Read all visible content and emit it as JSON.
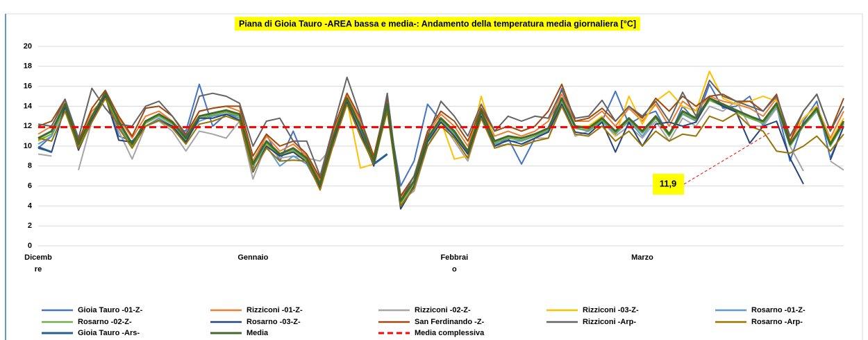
{
  "chart_data": {
    "type": "line",
    "title": "Piana di Gioia Tauro -AREA bassa e media-: Andamento della temperatura media giornaliera [°C]",
    "categories": [
      "Dicembre",
      null,
      null,
      null,
      null,
      null,
      null,
      null,
      null,
      null,
      null,
      null,
      null,
      null,
      null,
      null,
      "Gennaio",
      null,
      null,
      null,
      null,
      null,
      null,
      null,
      null,
      null,
      null,
      null,
      null,
      null,
      null,
      "Febbraio",
      null,
      null,
      null,
      null,
      null,
      null,
      null,
      null,
      null,
      null,
      null,
      null,
      null,
      "Marzo",
      null,
      null,
      null,
      null,
      null,
      null,
      null,
      null,
      null,
      null,
      null,
      null,
      null,
      null,
      null
    ],
    "ylim": [
      0,
      20
    ],
    "yticks": [
      0,
      2,
      4,
      6,
      8,
      10,
      12,
      14,
      16,
      18,
      20
    ],
    "grid": true,
    "legend": "bottom",
    "series": [
      {
        "name": "Gioia Tauro -01-Z-",
        "color": "#4472c4",
        "values": [
          9.8,
          11,
          14,
          9.8,
          12.8,
          15.5,
          11,
          10.5,
          12,
          12.8,
          11.8,
          11.5,
          16.2,
          12,
          13.2,
          13,
          7.8,
          11.2,
          8.5,
          11.5,
          8.2,
          5.8,
          11.5,
          14.5,
          12.2,
          8.2,
          14,
          6,
          8.5,
          14.2,
          12.5,
          11,
          9.5,
          13,
          10,
          10.8,
          8.2,
          10.8,
          11.5,
          15.8,
          11.8,
          12,
          12.5,
          15.5,
          12.2,
          13,
          13.5,
          11,
          14,
          12.5,
          16.2,
          13.8,
          14,
          15,
          12,
          14,
          8.5,
          12.5,
          14.5,
          8.8,
          12
        ]
      },
      {
        "name": "Rizziconi -01-Z-",
        "color": "#ed7d31",
        "values": [
          11.2,
          12,
          14.5,
          10.5,
          13.5,
          14.8,
          12.8,
          10.8,
          13,
          13.5,
          12.5,
          11,
          13.5,
          13.8,
          14,
          13.5,
          8.5,
          11,
          9.5,
          10.2,
          9,
          6.5,
          11.5,
          15,
          12.5,
          8.8,
          14.5,
          4.8,
          7,
          11.2,
          13.2,
          12,
          10,
          13.8,
          11,
          11.5,
          11,
          11.5,
          12.5,
          15.2,
          12.5,
          12.5,
          13.5,
          12,
          13.8,
          12.5,
          14.2,
          12,
          14.5,
          13.5,
          15,
          14.5,
          14.2,
          13.8,
          13,
          14.8,
          10.5,
          12.8,
          14,
          10.8,
          13.5
        ]
      },
      {
        "name": "Rizziconi -02-Z-",
        "color": "#a5a5a5",
        "values": [
          9.2,
          9,
          null,
          7.6,
          12.5,
          15,
          11.5,
          8.7,
          12,
          12.5,
          11.5,
          9.5,
          11.5,
          11.2,
          10.8,
          12.5,
          6.7,
          10.2,
          8.8,
          9,
          8.8,
          8.5,
          10,
          14.5,
          11,
          8.5,
          13.5,
          4.5,
          5.5,
          10,
          12.5,
          10.5,
          8.5,
          13,
          10,
          10.2,
          10,
          10.8,
          10.8,
          14.5,
          11,
          11.5,
          12.5,
          11,
          12,
          10.8,
          12.5,
          10.5,
          12.8,
          12,
          14,
          13.5,
          14.5,
          12,
          12,
          13.8,
          10,
          7.5,
          null,
          8.5,
          7.6
        ]
      },
      {
        "name": "Rizziconi -03-Z-",
        "color": "#ffc000",
        "values": [
          10.5,
          11.2,
          13.8,
          9.8,
          12.5,
          14.8,
          12,
          10,
          12,
          12.8,
          12,
          10.5,
          12.8,
          13,
          13.5,
          13,
          8,
          10.2,
          9,
          9.5,
          8.5,
          6,
          10.8,
          14.5,
          7.8,
          8.2,
          14,
          4.2,
          6.2,
          10.5,
          12.5,
          8.7,
          9,
          15,
          10.5,
          11,
          10.5,
          11,
          11.5,
          14.8,
          12,
          12,
          13,
          11,
          15,
          12.2,
          14.5,
          15.5,
          14,
          13.5,
          17.5,
          14.8,
          14.2,
          14.5,
          15,
          14.5,
          11,
          12.8,
          14,
          10.5,
          12.8
        ]
      },
      {
        "name": "Rosarno -01-Z-",
        "color": "#5b9bd5",
        "values": [
          10.2,
          11,
          13.8,
          9.8,
          12.8,
          15,
          12,
          10,
          12,
          12.8,
          12,
          10.8,
          12.5,
          13,
          13.2,
          12.8,
          8,
          10,
          8,
          9,
          8.2,
          6,
          10.5,
          14.5,
          11.8,
          8.2,
          14,
          4,
          6,
          10.5,
          12.5,
          11.2,
          9.2,
          13.2,
          10.2,
          10.5,
          10.5,
          11,
          11.5,
          14.5,
          11.8,
          11.5,
          12.5,
          11.2,
          12.5,
          11,
          12.8,
          11,
          13.2,
          12.5,
          14.8,
          14,
          13.5,
          13,
          12.2,
          14,
          10,
          12,
          13.5,
          10,
          12.2
        ]
      },
      {
        "name": "Rosarno -02-Z-",
        "color": "#70ad47",
        "values": [
          10.6,
          11.2,
          14,
          10,
          12.8,
          15,
          12.3,
          10,
          12.3,
          13,
          12.2,
          10.6,
          12.8,
          13.1,
          13.4,
          13,
          8,
          10.3,
          9,
          9.6,
          8.6,
          6,
          10.8,
          14.6,
          11.8,
          8.3,
          14,
          4.3,
          6.3,
          10.6,
          12.6,
          11.3,
          9.3,
          13.3,
          10.3,
          10.8,
          10.6,
          11,
          11.6,
          14.6,
          11.8,
          11.6,
          12.6,
          11.3,
          12.6,
          11.3,
          12.8,
          11,
          13.3,
          12.6,
          14.6,
          14,
          13.4,
          12.8,
          12.3,
          14.1,
          10,
          12,
          13.6,
          10,
          12.3
        ]
      },
      {
        "name": "Rosarno -03-Z-",
        "color": "#264478",
        "values": [
          9.8,
          9.4,
          14,
          9.6,
          12.6,
          15,
          10.6,
          10.4,
          12,
          12.6,
          12,
          10.4,
          12.8,
          12.8,
          13.2,
          12.6,
          7.4,
          10,
          9,
          9.4,
          8.4,
          5.8,
          10.6,
          14.4,
          11.4,
          8,
          13.8,
          3.7,
          6,
          10.4,
          12.4,
          11,
          9.2,
          13,
          10,
          10.6,
          10.2,
          10.8,
          11.4,
          14.2,
          11.4,
          11.2,
          12.4,
          9.4,
          12.4,
          10,
          12.2,
          12.4,
          12,
          12.4,
          14.8,
          14,
          13.4,
          10.3,
          12,
          12.5,
          8.8,
          6.2,
          null,
          8.6,
          12
        ]
      },
      {
        "name": "San Ferdinando -Z-",
        "color": "#9e480e",
        "values": [
          12,
          12.5,
          14.7,
          10.5,
          13.8,
          15.6,
          13,
          11,
          13.8,
          14,
          13,
          11.2,
          13.5,
          13.8,
          14,
          14,
          9,
          11.2,
          10,
          10.5,
          9.2,
          6.8,
          11.8,
          15.3,
          12.8,
          9,
          14.8,
          5,
          7,
          11.5,
          13.5,
          12.5,
          10.5,
          13.8,
          11.5,
          12,
          11.5,
          12,
          13.5,
          16.2,
          12.5,
          12.8,
          13.8,
          12.5,
          14,
          12.8,
          14.8,
          13.5,
          15,
          14,
          15,
          15.2,
          14.5,
          14.5,
          13.5,
          15.2,
          10.5,
          13.5,
          15.2,
          11.5,
          14.8
        ]
      },
      {
        "name": "Rizziconi -Arp-",
        "color": "#636363",
        "values": [
          12.2,
          12,
          14.7,
          10.8,
          15.8,
          13.8,
          12.2,
          12,
          14,
          14.5,
          13,
          11,
          15,
          15.3,
          15,
          14.3,
          10,
          12.5,
          12.8,
          10.5,
          10.5,
          7,
          12,
          16.9,
          13,
          8.2,
          15.3,
          4.5,
          7,
          11,
          14.5,
          13,
          11,
          14.2,
          11.5,
          13,
          12.5,
          13,
          12.8,
          15.6,
          12.8,
          13,
          14.6,
          12.5,
          14,
          13,
          14.5,
          12.5,
          15.4,
          13,
          16.6,
          15,
          14.5,
          14,
          13.5,
          15,
          11,
          13.5,
          15.2,
          11.5,
          14
        ]
      },
      {
        "name": "Rosarno -Arp-",
        "color": "#997300",
        "values": [
          10.8,
          10.5,
          13.5,
          9.8,
          12.4,
          14.8,
          11.8,
          9.8,
          12,
          12.6,
          11.8,
          10.2,
          12.2,
          12.5,
          13,
          12.5,
          7.5,
          9.8,
          8.5,
          8.6,
          8.5,
          5.6,
          10.2,
          14.2,
          11,
          8.2,
          13.5,
          4,
          5.8,
          10,
          12,
          10.8,
          8.8,
          12.8,
          9.8,
          10.2,
          10,
          10.5,
          10.8,
          14,
          11.2,
          11,
          12,
          10.5,
          11.5,
          10,
          11.5,
          10.5,
          11.2,
          11,
          13,
          12.5,
          13.3,
          12,
          11.5,
          9.5,
          9.3,
          10,
          11,
          9.5,
          11.2
        ]
      },
      {
        "name": "Gioia Tauro -Ars-",
        "color": "#255e91",
        "width": 3,
        "values": [
          9.9,
          9.4,
          null,
          null,
          null,
          null,
          null,
          null,
          null,
          null,
          null,
          null,
          null,
          null,
          null,
          null,
          null,
          null,
          null,
          null,
          null,
          null,
          null,
          null,
          null,
          8.2,
          9.2,
          null,
          null,
          null,
          null,
          null,
          null,
          null,
          null,
          null,
          null,
          null,
          null,
          null,
          null,
          null,
          null,
          null,
          null,
          null,
          null,
          null,
          null,
          null,
          null,
          null,
          null,
          null,
          null,
          null,
          null,
          null,
          null,
          null,
          null
        ]
      },
      {
        "name": "Media",
        "color": "#43682b",
        "width": 3,
        "values": [
          10.8,
          11.5,
          14.2,
          10.2,
          13,
          15.3,
          12.5,
          10.2,
          12.5,
          13.2,
          12.4,
          10.8,
          13,
          13.3,
          13.6,
          13.2,
          8.2,
          10.5,
          9.2,
          9.8,
          8.8,
          6.2,
          11,
          14.8,
          12,
          8.5,
          14.2,
          4.5,
          6.5,
          10.8,
          12.8,
          11.5,
          9.5,
          13.5,
          10.5,
          11,
          10.8,
          11.2,
          11.8,
          14.8,
          12,
          11.8,
          12.8,
          11.5,
          12.8,
          11.5,
          13,
          11.2,
          13.5,
          12.8,
          14.8,
          14.2,
          13.6,
          13,
          12.5,
          14.3,
          10.2,
          12.2,
          13.8,
          10.2,
          12.5
        ]
      }
    ],
    "reference_line": {
      "name": "Media complessiva",
      "color": "#ff0000",
      "value": 11.9,
      "value_label": "11,9"
    }
  }
}
